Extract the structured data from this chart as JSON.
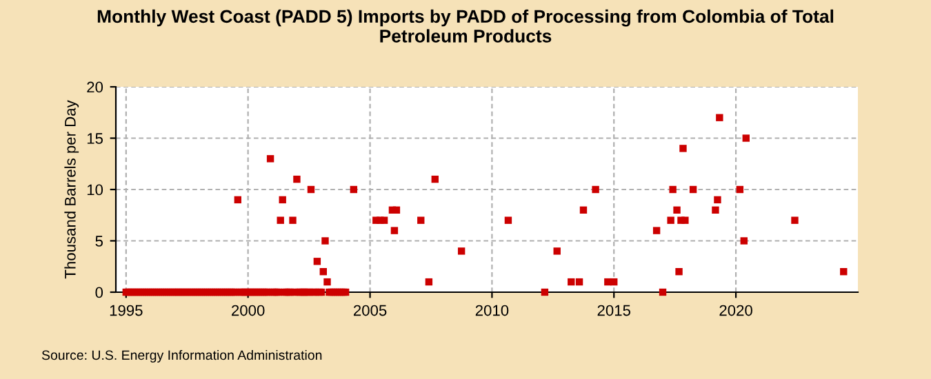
{
  "chart_data": {
    "type": "scatter",
    "title": "Monthly West Coast (PADD 5) Imports by PADD of Processing from Colombia of Total\nPetroleum Products",
    "ylabel": "Thousand Barrels per Day",
    "annotations": [
      "Source: U.S. Energy Information Administration"
    ],
    "xlim": [
      "1994-08",
      "2025-01"
    ],
    "xticks": [
      {
        "value": "1995",
        "label": "1995"
      },
      {
        "value": "2000",
        "label": "2000"
      },
      {
        "value": "2005",
        "label": "2005"
      },
      {
        "value": "2010",
        "label": "2010"
      },
      {
        "value": "2015",
        "label": "2015"
      },
      {
        "value": "2020",
        "label": "2020"
      }
    ],
    "ylim": [
      0,
      20
    ],
    "yticks": [
      0,
      5,
      10,
      15,
      20
    ],
    "grid": true,
    "marker": "square",
    "series": [
      {
        "color": "#cc0000",
        "x": [
          "1995-01",
          "1995-02",
          "1995-03",
          "1995-04",
          "1995-05",
          "1995-06",
          "1995-07",
          "1995-08",
          "1995-09",
          "1995-10",
          "1995-11",
          "1995-12",
          "1996-01",
          "1996-02",
          "1996-03",
          "1996-04",
          "1996-05",
          "1996-06",
          "1996-07",
          "1996-08",
          "1996-09",
          "1996-10",
          "1996-11",
          "1996-12",
          "1997-01",
          "1997-02",
          "1997-03",
          "1997-04",
          "1997-05",
          "1997-06",
          "1997-07",
          "1997-08",
          "1997-09",
          "1997-10",
          "1997-11",
          "1997-12",
          "1998-01",
          "1998-02",
          "1998-03",
          "1998-04",
          "1998-05",
          "1998-06",
          "1998-07",
          "1998-08",
          "1998-09",
          "1998-10",
          "1998-11",
          "1998-12",
          "1999-01",
          "1999-02",
          "1999-03",
          "1999-04",
          "1999-05",
          "1999-06",
          "1999-07",
          "1999-08",
          "1999-09",
          "1999-10",
          "1999-11",
          "1999-12",
          "2000-01",
          "2000-02",
          "2000-03",
          "2000-04",
          "2000-05",
          "2000-06",
          "2000-07",
          "2000-08",
          "2000-09",
          "2000-10",
          "2000-11",
          "2000-12",
          "2001-01",
          "2001-02",
          "2001-03",
          "2001-04",
          "2001-05",
          "2001-06",
          "2001-07",
          "2001-08",
          "2001-09",
          "2001-10",
          "2001-11",
          "2001-12",
          "2002-01",
          "2002-02",
          "2002-03",
          "2002-04",
          "2002-05",
          "2002-06",
          "2002-07",
          "2002-08",
          "2002-09",
          "2002-10",
          "2002-11",
          "2002-12",
          "2003-01",
          "2003-02",
          "2003-03",
          "2003-04",
          "2003-05",
          "2003-06",
          "2003-07",
          "2003-08",
          "2003-09",
          "2003-10",
          "2003-11",
          "2003-12",
          "2004-01",
          "2004-05",
          "2005-04",
          "2005-06",
          "2005-08",
          "2005-12",
          "2006-01",
          "2006-02",
          "2007-02",
          "2007-06",
          "2007-09",
          "2008-10",
          "2010-09",
          "2012-03",
          "2012-09",
          "2013-04",
          "2013-08",
          "2013-10",
          "2014-04",
          "2014-10",
          "2015-01",
          "2016-10",
          "2017-01",
          "2017-05",
          "2017-06",
          "2017-08",
          "2017-09",
          "2017-10",
          "2017-11",
          "2017-12",
          "2018-04",
          "2019-03",
          "2019-04",
          "2019-05",
          "2020-03",
          "2020-05",
          "2020-06",
          "2022-06",
          "2024-06"
        ],
        "values": [
          0,
          0,
          0,
          0,
          0,
          0,
          0,
          0,
          0,
          0,
          0,
          0,
          0,
          0,
          0,
          0,
          0,
          0,
          0,
          0,
          0,
          0,
          0,
          0,
          0,
          0,
          0,
          0,
          0,
          0,
          0,
          0,
          0,
          0,
          0,
          0,
          0,
          0,
          0,
          0,
          0,
          0,
          0,
          0,
          0,
          0,
          0,
          0,
          0,
          0,
          0,
          0,
          0,
          0,
          0,
          9,
          0,
          0,
          0,
          0,
          0,
          0,
          0,
          0,
          0,
          0,
          0,
          0,
          0,
          0,
          0,
          13,
          0,
          0,
          0,
          0,
          7,
          9,
          0,
          0,
          0,
          0,
          7,
          0,
          11,
          0,
          0,
          0,
          0,
          0,
          0,
          10,
          0,
          0,
          3,
          0,
          0,
          2,
          5,
          1,
          0,
          0,
          0,
          0,
          0,
          0,
          0,
          0,
          0,
          10,
          7,
          7,
          7,
          8,
          6,
          8,
          7,
          1,
          11,
          4,
          7,
          0,
          4,
          1,
          1,
          8,
          10,
          1,
          1,
          6,
          0,
          7,
          10,
          8,
          2,
          7,
          14,
          7,
          10,
          8,
          9,
          17,
          10,
          5,
          15,
          7,
          2
        ]
      }
    ]
  }
}
